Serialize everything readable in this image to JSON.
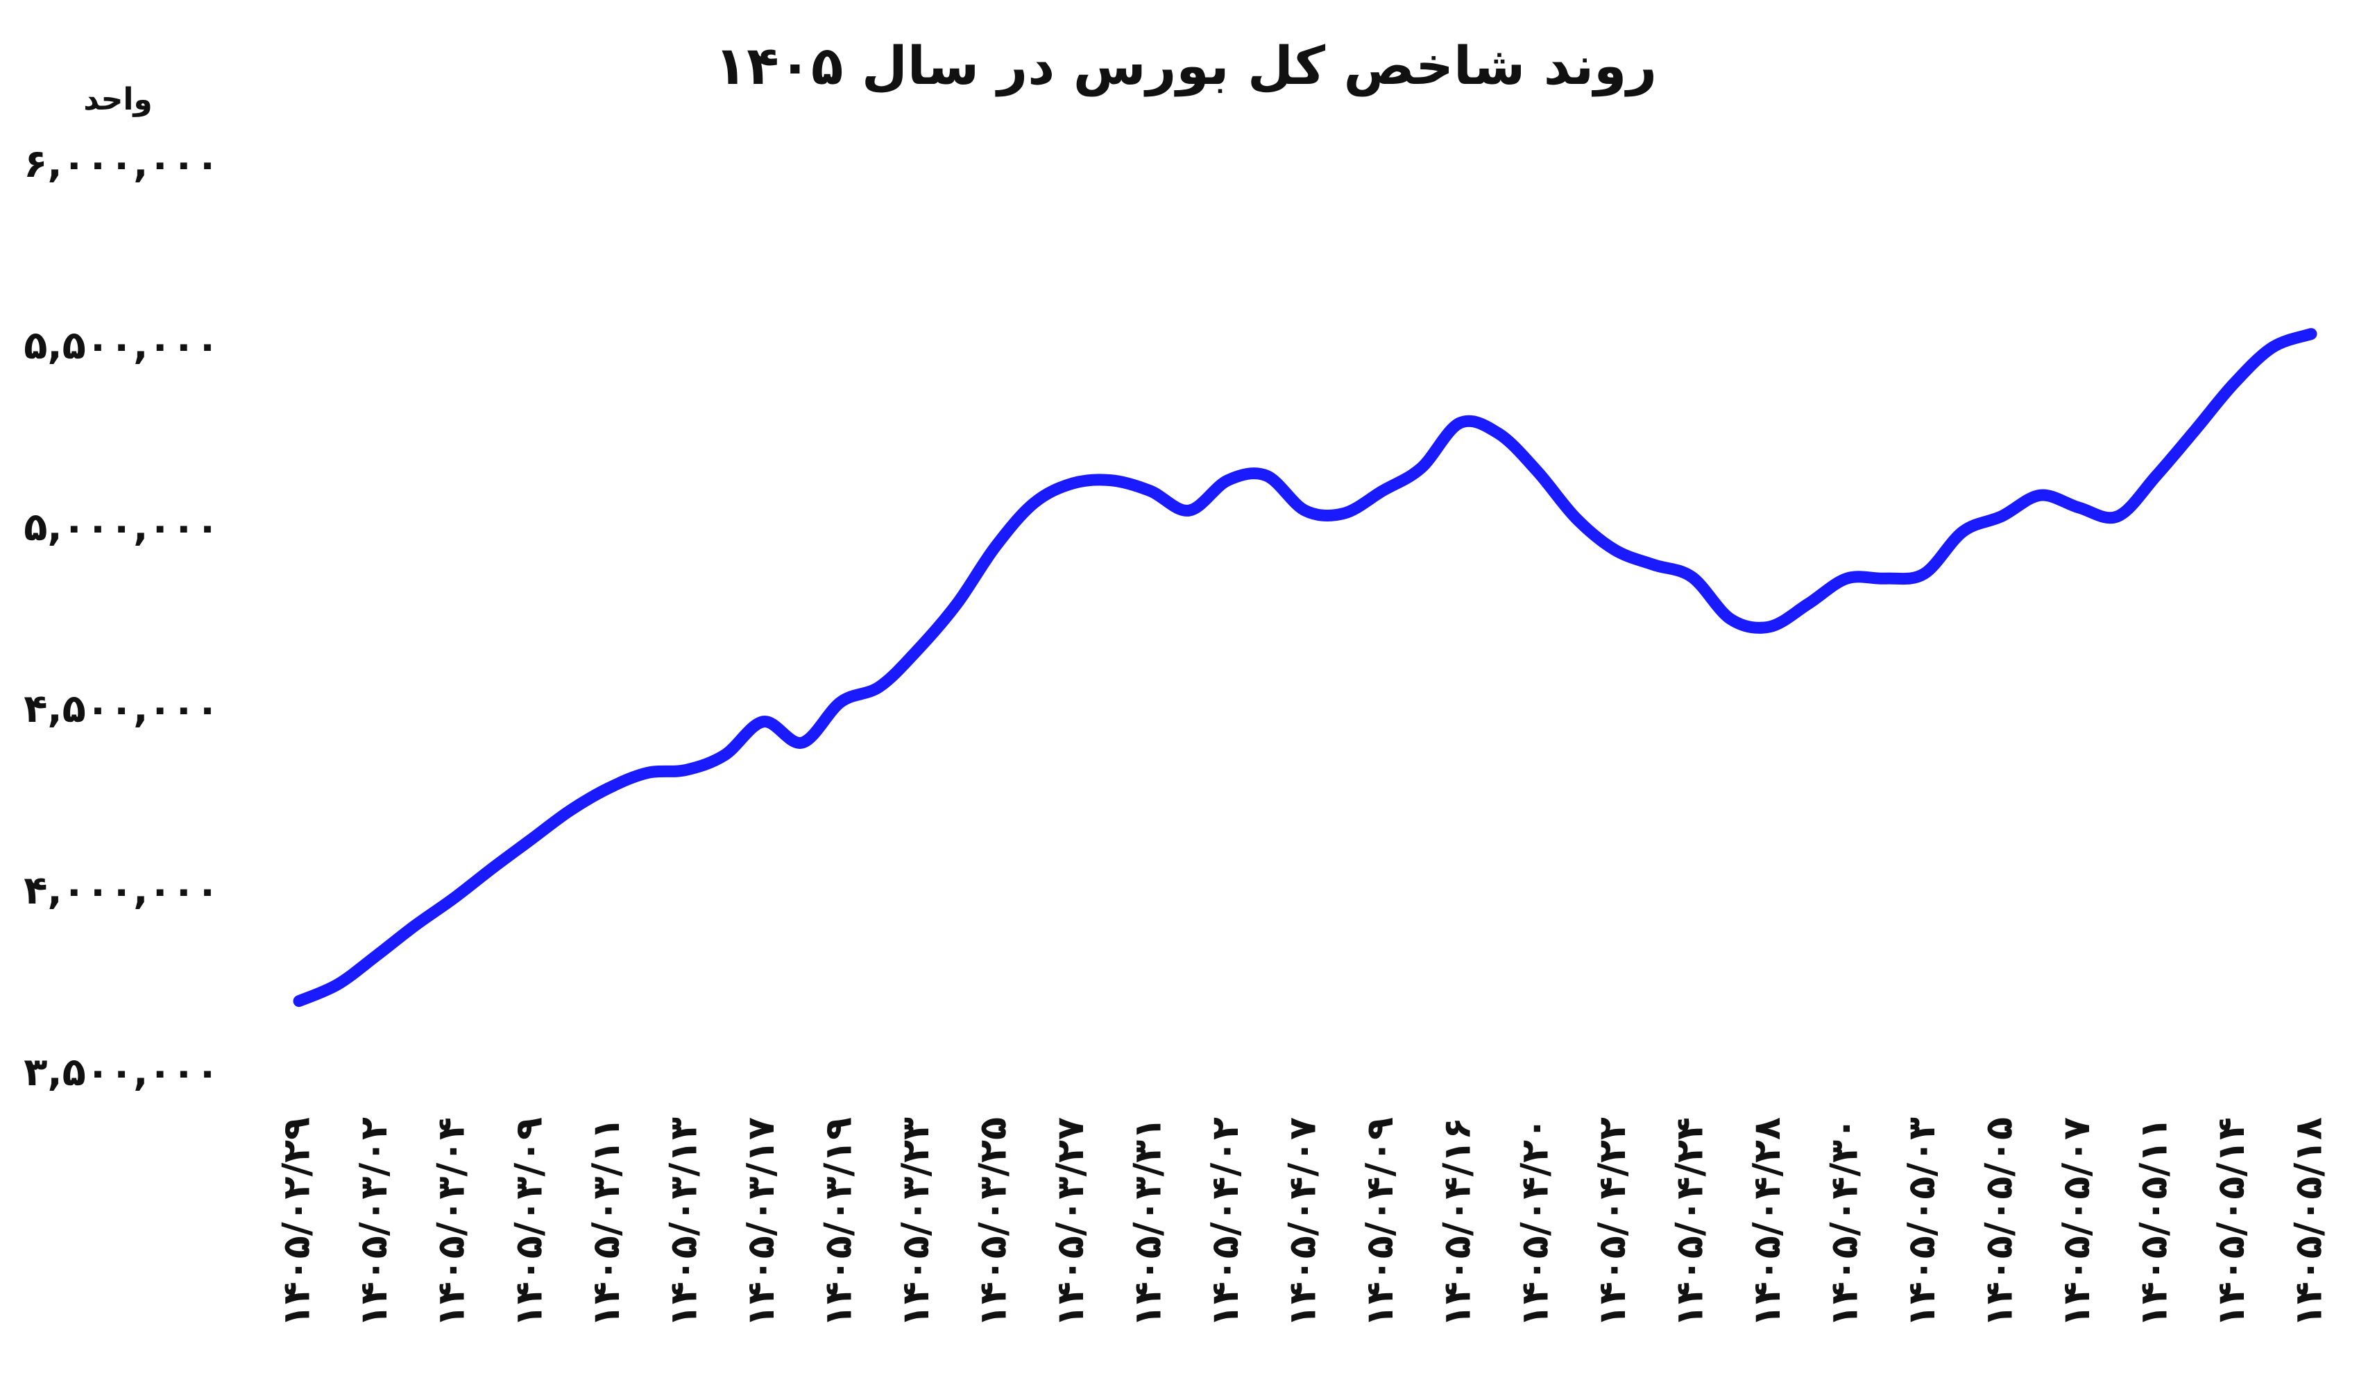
{
  "chart_data": {
    "type": "line",
    "title": "روند شاخص کل بورس در سال ۱۴۰۵",
    "y_axis_label": "واحد",
    "categories": [
      "۱۴۰۵/۰۲/۲۹",
      null,
      "۱۴۰۵/۰۳/۰۲",
      null,
      "۱۴۰۵/۰۳/۰۴",
      null,
      "۱۴۰۵/۰۳/۰۹",
      null,
      "۱۴۰۵/۰۳/۱۱",
      null,
      "۱۴۰۵/۰۳/۱۳",
      null,
      "۱۴۰۵/۰۳/۱۷",
      null,
      "۱۴۰۵/۰۳/۱۹",
      null,
      "۱۴۰۵/۰۳/۲۳",
      null,
      "۱۴۰۵/۰۳/۲۵",
      null,
      "۱۴۰۵/۰۳/۲۷",
      null,
      "۱۴۰۵/۰۳/۳۱",
      null,
      "۱۴۰۵/۰۴/۰۲",
      null,
      "۱۴۰۵/۰۴/۰۷",
      null,
      "۱۴۰۵/۰۴/۰۹",
      null,
      "۱۴۰۵/۰۴/۱۶",
      null,
      "۱۴۰۵/۰۴/۲۰",
      null,
      "۱۴۰۵/۰۴/۲۲",
      null,
      "۱۴۰۵/۰۴/۲۴",
      null,
      "۱۴۰۵/۰۴/۲۸",
      null,
      "۱۴۰۵/۰۴/۳۰",
      null,
      "۱۴۰۵/۰۵/۰۳",
      null,
      "۱۴۰۵/۰۵/۰۵",
      null,
      "۱۴۰۵/۰۵/۰۷",
      null,
      "۱۴۰۵/۰۵/۱۱",
      null,
      "۱۴۰۵/۰۵/۱۴",
      null,
      "۱۴۰۵/۰۵/۱۸"
    ],
    "series": [
      {
        "color": "#1a1aff",
        "values": [
          3703000,
          3749000,
          3828000,
          3911000,
          3986000,
          4069000,
          4148000,
          4227000,
          4289000,
          4331000,
          4339000,
          4380000,
          4472000,
          4414000,
          4526000,
          4568000,
          4671000,
          4796000,
          4954000,
          5074000,
          5128000,
          5136000,
          5107000,
          5053000,
          5136000,
          5149000,
          5053000,
          5045000,
          5107000,
          5170000,
          5294000,
          5265000,
          5161000,
          5032000,
          4945000,
          4904000,
          4870000,
          4754000,
          4733000,
          4796000,
          4866000,
          4866000,
          4879000,
          4995000,
          5037000,
          5095000,
          5061000,
          5037000,
          5149000,
          5274000,
          5402000,
          5502000,
          5539000
        ]
      }
    ],
    "ylim": [
      3500000,
      6000000
    ],
    "yticks": [
      {
        "value": 3500000,
        "label": "۳,۵۰۰,۰۰۰"
      },
      {
        "value": 4000000,
        "label": "۴,۰۰۰,۰۰۰"
      },
      {
        "value": 4500000,
        "label": "۴,۵۰۰,۰۰۰"
      },
      {
        "value": 5000000,
        "label": "۵,۰۰۰,۰۰۰"
      },
      {
        "value": 5500000,
        "label": "۵,۵۰۰,۰۰۰"
      },
      {
        "value": 6000000,
        "label": "۶,۰۰۰,۰۰۰"
      }
    ],
    "grid": false
  }
}
